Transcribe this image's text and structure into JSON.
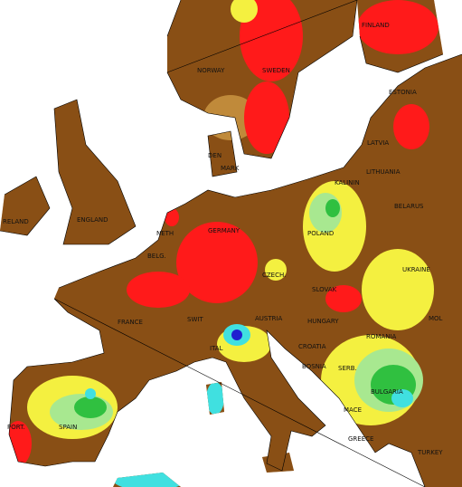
{
  "map": {
    "labels": [
      "NORWAY",
      "SWEDEN",
      "FINLAND",
      "ESTONIA",
      "LATVIA",
      "LITHUANIA",
      "KALININ",
      "BELARUS",
      "DEN",
      "MARK",
      "RELAND",
      "ENGLAND",
      "GERMANY",
      "NETH",
      "BELG.",
      "POLAND",
      "CZECH.",
      "SLOVAK",
      "UKRAINE",
      "FRANCE",
      "SWIT",
      "AUSTRIA",
      "HUNGARY",
      "ROMANIA",
      "ITAL",
      "CROATIA",
      "BOSNIA",
      "SERB.",
      "BULGARIA",
      "MACE",
      "GREECE",
      "TURKEY",
      "SPAIN",
      "PORT.",
      "MOL"
    ]
  }
}
